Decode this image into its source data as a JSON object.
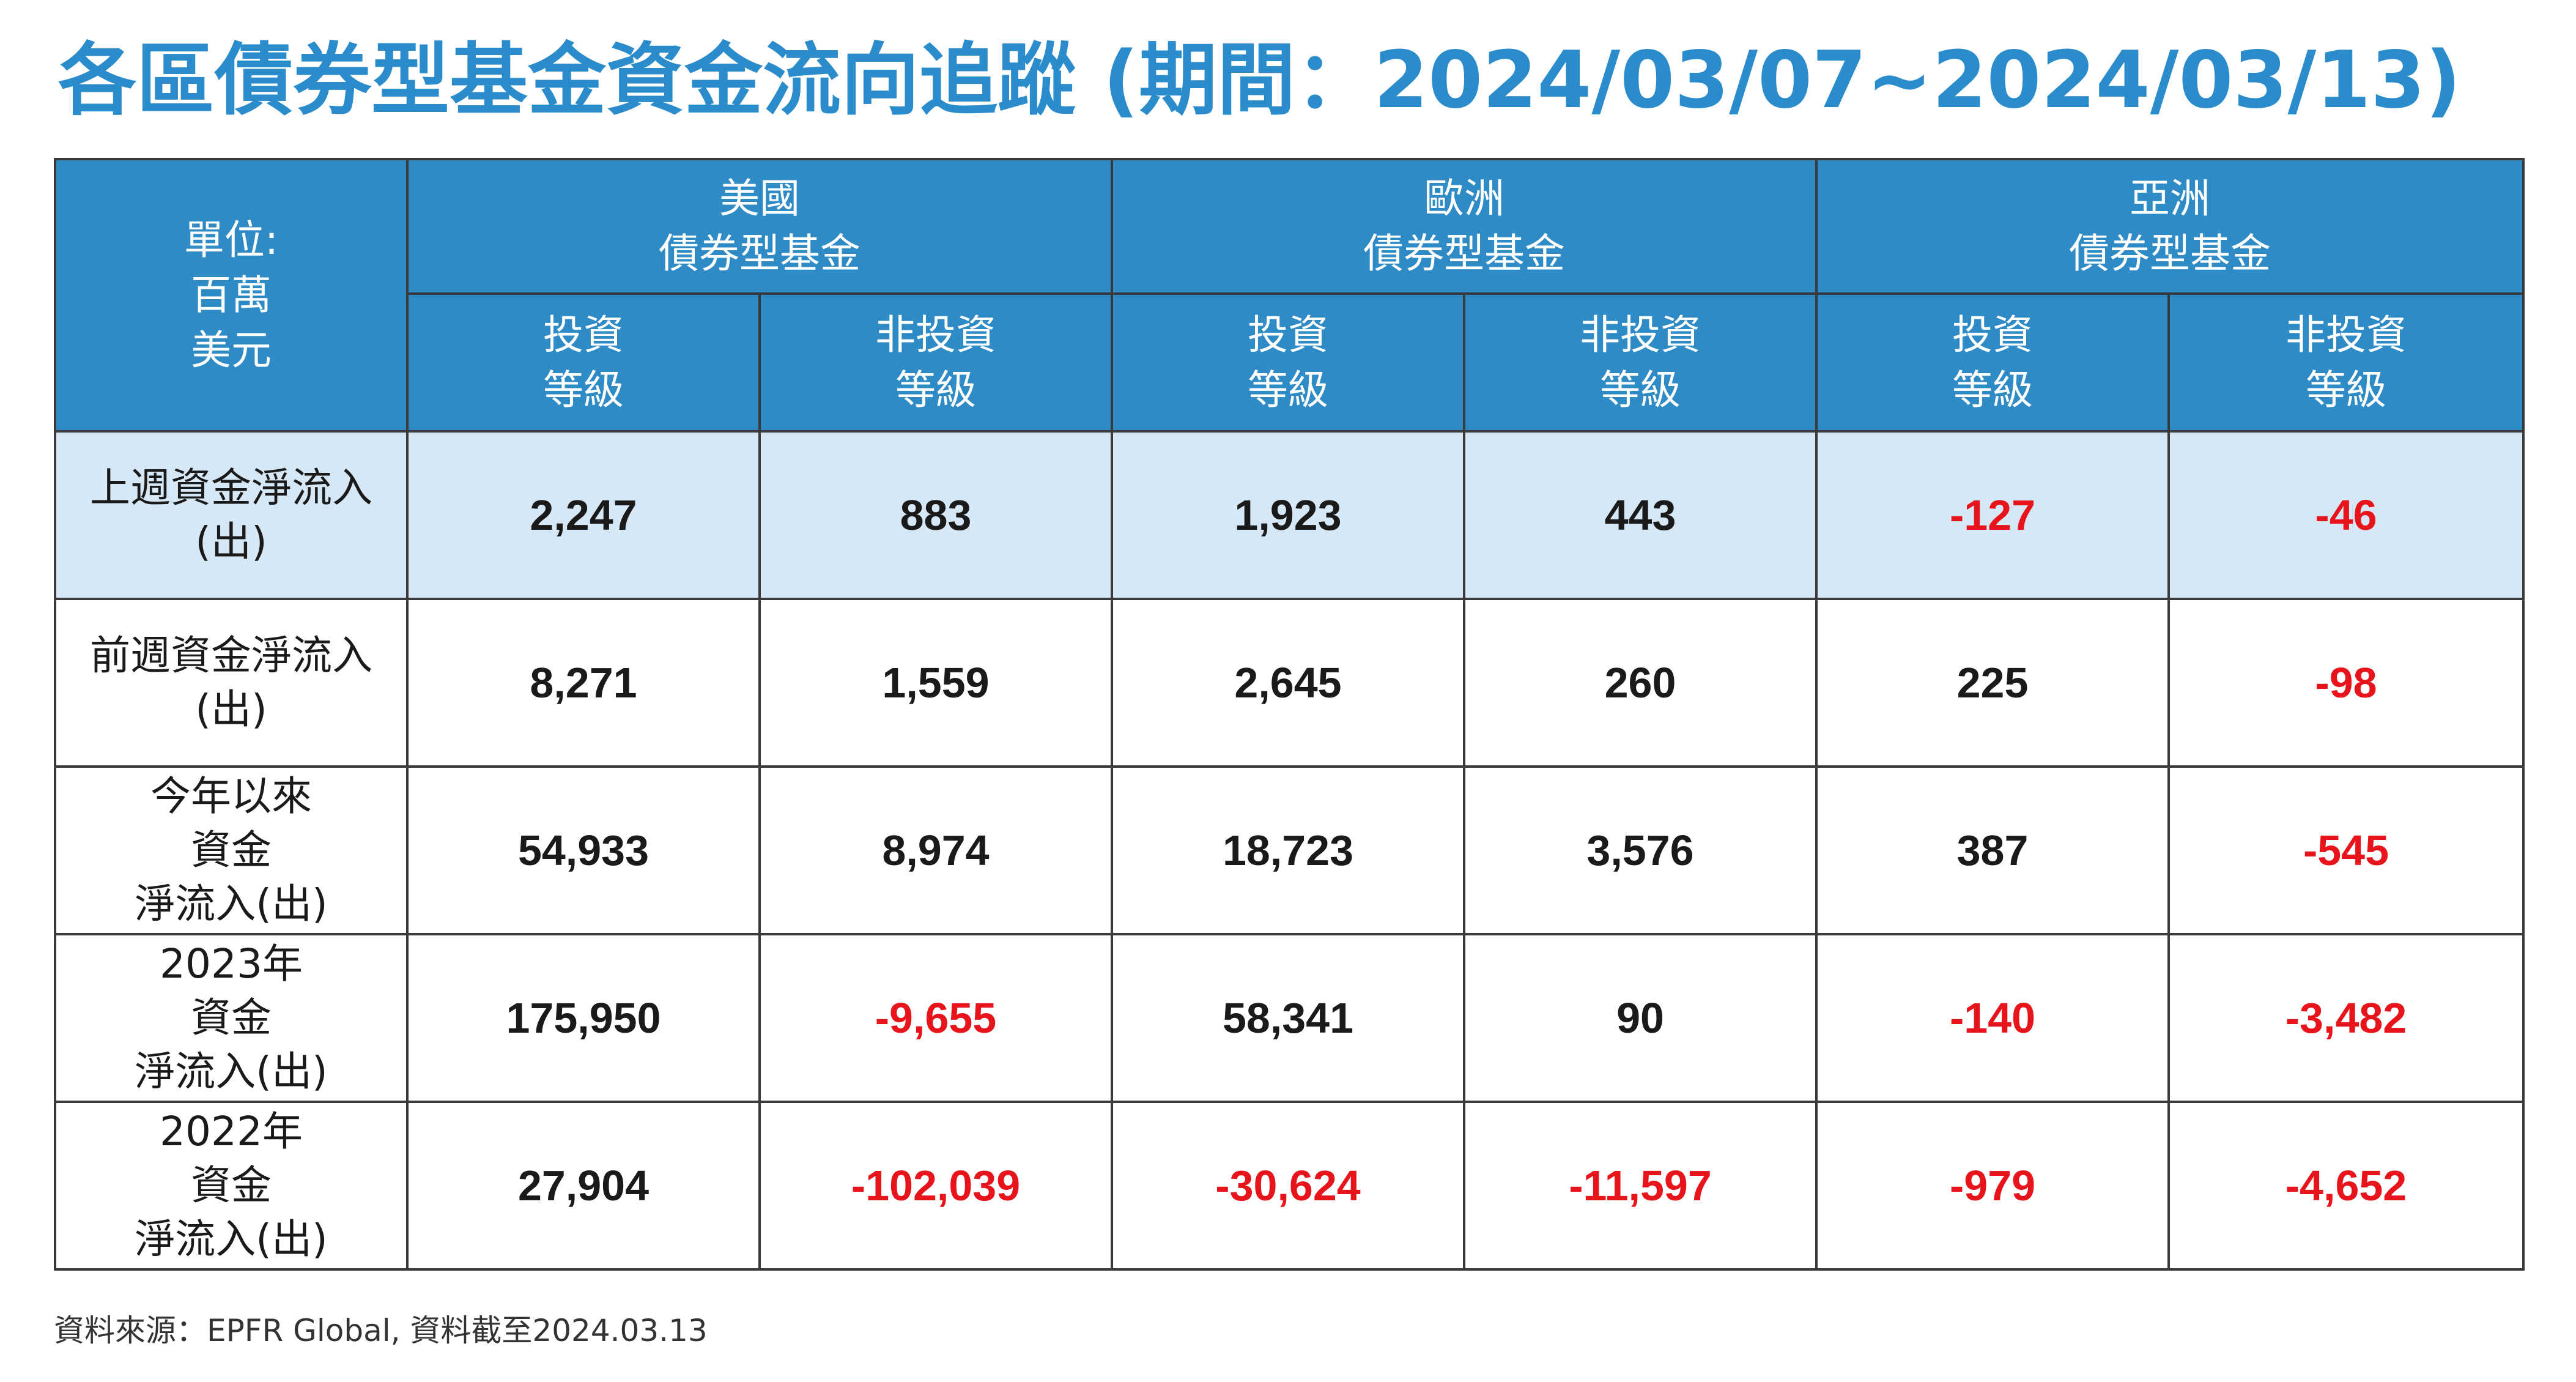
{
  "title": "各區債券型基金資金流向追蹤 (期間：2024/03/07~2024/03/13)",
  "header": {
    "unit_lines": [
      "單位:",
      "百萬",
      "美元"
    ],
    "regions": [
      {
        "lines": [
          "美國",
          "債券型基金"
        ]
      },
      {
        "lines": [
          "歐洲",
          "債券型基金"
        ]
      },
      {
        "lines": [
          "亞洲",
          "債券型基金"
        ]
      }
    ],
    "grades": [
      {
        "lines": [
          "投資",
          "等級"
        ]
      },
      {
        "lines": [
          "非投資",
          "等級"
        ]
      },
      {
        "lines": [
          "投資",
          "等級"
        ]
      },
      {
        "lines": [
          "非投資",
          "等級"
        ]
      },
      {
        "lines": [
          "投資",
          "等級"
        ]
      },
      {
        "lines": [
          "非投資",
          "等級"
        ]
      }
    ]
  },
  "rows": [
    {
      "label_lines": [
        "上週資金淨流入",
        "(出)"
      ],
      "values": [
        "2,247",
        "883",
        "1,923",
        "443",
        "-127",
        "-46"
      ]
    },
    {
      "label_lines": [
        "前週資金淨流入",
        "(出)"
      ],
      "values": [
        "8,271",
        "1,559",
        "2,645",
        "260",
        "225",
        "-98"
      ]
    },
    {
      "label_lines": [
        "今年以來",
        "資金",
        "淨流入(出)"
      ],
      "values": [
        "54,933",
        "8,974",
        "18,723",
        "3,576",
        "387",
        "-545"
      ]
    },
    {
      "label_lines": [
        "2023年",
        "資金",
        "淨流入(出)"
      ],
      "values": [
        "175,950",
        "-9,655",
        "58,341",
        "90",
        "-140",
        "-3,482"
      ]
    },
    {
      "label_lines": [
        "2022年",
        "資金",
        "淨流入(出)"
      ],
      "values": [
        "27,904",
        "-102,039",
        "-30,624",
        "-11,597",
        "-979",
        "-4,652"
      ]
    }
  ],
  "colors": {
    "title": "#2b8ccc",
    "header_bg": "#2e8bc6",
    "highlight_row_bg": "#d6e7f5",
    "negative": "#e8141b"
  },
  "source": "資料來源：EPFR Global, 資料截至2024.03.13"
}
